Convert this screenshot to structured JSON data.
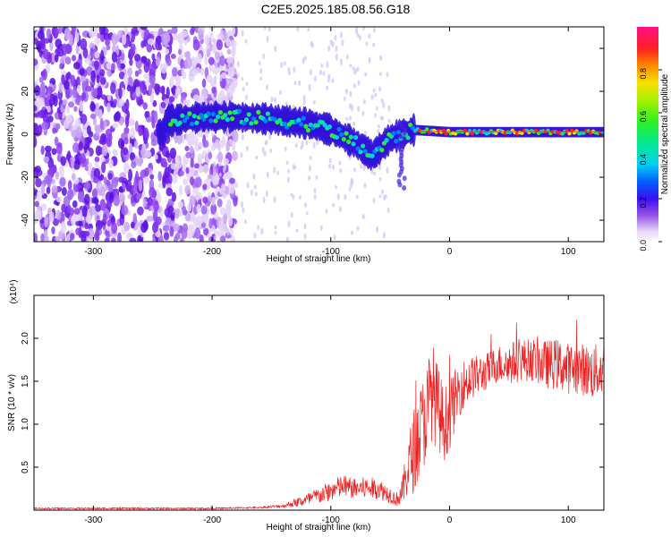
{
  "title": "C2E5.2025.185.08.56.G18",
  "chart_data": [
    {
      "type": "heatmap",
      "xlabel": "Height of straight line (km)",
      "ylabel": "Frequency (Hz)",
      "xlim": [
        -350,
        130
      ],
      "ylim": [
        -50,
        50
      ],
      "xticks": [
        -300,
        -200,
        -100,
        0,
        100
      ],
      "yticks": [
        -40,
        -20,
        0,
        20,
        40
      ],
      "colorbar": {
        "label": "Normalized spectral amplitude",
        "ticks": [
          "0.0",
          "0.2",
          "0.4",
          "0.6",
          "0.8"
        ],
        "range": [
          0,
          1
        ]
      },
      "features": {
        "noise_region_x": [
          -350,
          -200
        ],
        "ridge": [
          {
            "x": -240,
            "y": 6
          },
          {
            "x": -210,
            "y": 8
          },
          {
            "x": -180,
            "y": 8
          },
          {
            "x": -150,
            "y": 7
          },
          {
            "x": -120,
            "y": 5
          },
          {
            "x": -100,
            "y": 2
          },
          {
            "x": -80,
            "y": -4
          },
          {
            "x": -65,
            "y": -10
          },
          {
            "x": -50,
            "y": -2
          },
          {
            "x": -30,
            "y": 2
          },
          {
            "x": 0,
            "y": 1
          },
          {
            "x": 50,
            "y": 1
          },
          {
            "x": 100,
            "y": 1
          },
          {
            "x": 130,
            "y": 1
          }
        ]
      }
    },
    {
      "type": "line",
      "xlabel": "Height of straight line (km)",
      "ylabel": "SNR (10 * v/v)",
      "y_scale_label": "(x10⁴)",
      "xlim": [
        -350,
        130
      ],
      "ylim": [
        0,
        2.5
      ],
      "xticks": [
        -300,
        -200,
        -100,
        0,
        100
      ],
      "yticks": [
        "0.5",
        "1.0",
        "1.5",
        "2.0"
      ],
      "ytick_values": [
        0.5,
        1.0,
        1.5,
        2.0
      ],
      "color": "#ee2222",
      "series": [
        {
          "x": [
            -350,
            -300,
            -250,
            -200,
            -160,
            -140,
            -120,
            -100,
            -90,
            -80,
            -70,
            -60,
            -50,
            -45,
            -40,
            -35,
            -30,
            -25,
            -20,
            -15,
            -10,
            -5,
            0,
            5,
            10,
            20,
            30,
            40,
            50,
            60,
            70,
            80,
            90,
            100,
            110,
            120,
            130
          ],
          "y": [
            0.02,
            0.02,
            0.02,
            0.02,
            0.03,
            0.05,
            0.12,
            0.22,
            0.28,
            0.25,
            0.26,
            0.25,
            0.18,
            0.12,
            0.2,
            0.5,
            0.7,
            0.9,
            1.1,
            1.4,
            1.2,
            1.0,
            1.1,
            1.3,
            1.45,
            1.55,
            1.6,
            1.7,
            1.7,
            1.75,
            1.75,
            1.7,
            1.7,
            1.65,
            1.65,
            1.6,
            1.65
          ],
          "noise": [
            0.01,
            0.01,
            0.01,
            0.01,
            0.01,
            0.02,
            0.08,
            0.12,
            0.14,
            0.12,
            0.13,
            0.12,
            0.1,
            0.08,
            0.15,
            0.35,
            0.5,
            0.55,
            0.55,
            0.6,
            0.5,
            0.45,
            0.4,
            0.35,
            0.3,
            0.25,
            0.22,
            0.22,
            0.25,
            0.25,
            0.25,
            0.28,
            0.3,
            0.3,
            0.3,
            0.32,
            0.32
          ]
        }
      ]
    }
  ]
}
